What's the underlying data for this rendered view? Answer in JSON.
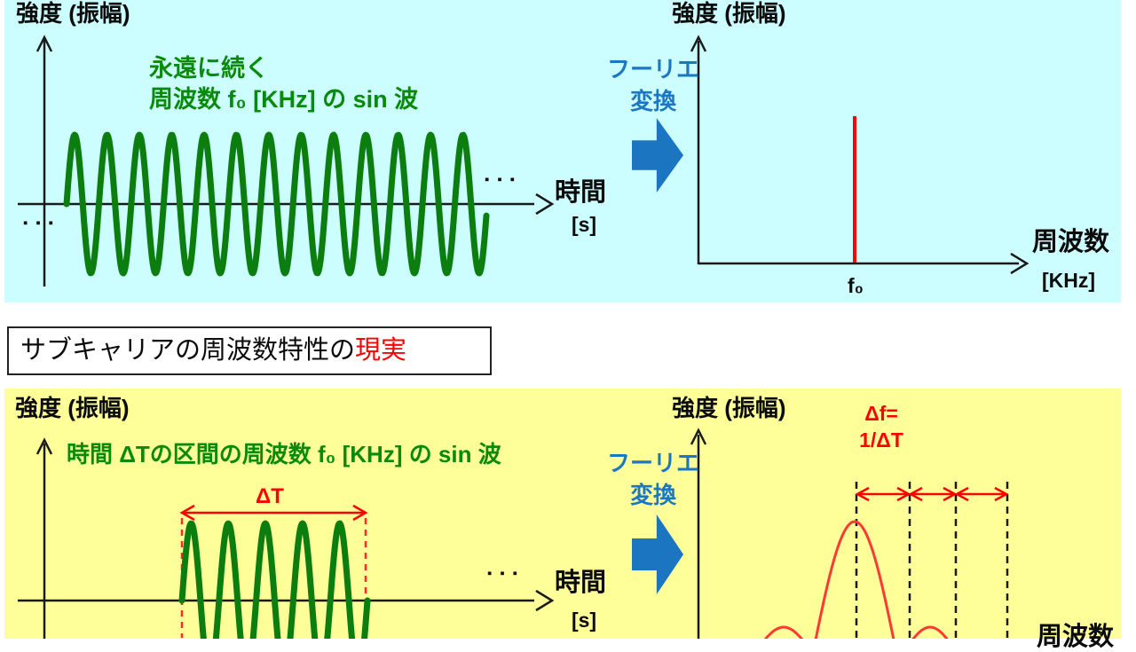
{
  "colors": {
    "top_panel_bg": "#ccfeff",
    "bottom_panel_bg": "#ffff99",
    "wave_green": "#0c7e10",
    "text_green": "#0a8a0a",
    "fourier_blue": "#1b75c0",
    "red": "#ff0000",
    "black": "#0b0b0b"
  },
  "shared": {
    "continuation_dots": "▪▪▪"
  },
  "top": {
    "left": {
      "y_label": "強度 (振幅)",
      "caption_line1": "永遠に続く",
      "caption_line2": "周波数 f₀ [KHz] の sin 波",
      "x_label": "時間",
      "x_unit": "[s]"
    },
    "fourier": {
      "line1": "フーリエ",
      "line2": "変換"
    },
    "right": {
      "y_label": "強度 (振幅)",
      "x_label": "周波数",
      "x_unit": "[KHz]",
      "peak_label": "f₀"
    }
  },
  "title_box": {
    "text_black": "サブキャリアの周波数特性の",
    "text_red": "現実"
  },
  "bottom": {
    "left": {
      "y_label": "強度 (振幅)",
      "caption": "時間 ΔTの区間の周波数 f₀ [KHz] の sin 波",
      "duration_label": "ΔT",
      "x_label": "時間",
      "x_unit": "[s]"
    },
    "fourier": {
      "line1": "フーリエ",
      "line2": "変換"
    },
    "right": {
      "y_label": "強度 (振幅)",
      "spacing_line1": "Δf=",
      "spacing_line2": "1/ΔT",
      "x_label": "周波数"
    }
  }
}
